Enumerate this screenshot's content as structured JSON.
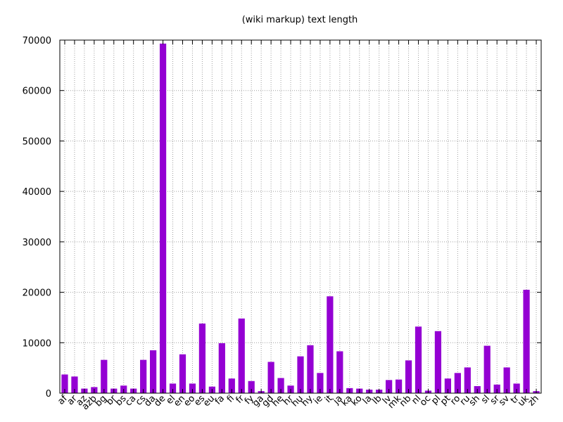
{
  "chart_data": {
    "type": "bar",
    "title": "(wiki markup) text length",
    "xlabel": "",
    "ylabel": "",
    "ylim": [
      0,
      70000
    ],
    "yticks": [
      "0",
      "10000",
      "20000",
      "30000",
      "40000",
      "50000",
      "60000",
      "70000"
    ],
    "grid": true,
    "bar_color": "#9400d3",
    "categories": [
      "af",
      "ar",
      "az",
      "azb",
      "bg",
      "br",
      "bs",
      "ca",
      "cs",
      "da",
      "de",
      "el",
      "en",
      "eo",
      "es",
      "eu",
      "fa",
      "fi",
      "fr",
      "fy",
      "ga",
      "gd",
      "he",
      "hr",
      "hu",
      "hy",
      "ie",
      "it",
      "ja",
      "ka",
      "ko",
      "la",
      "lb",
      "lv",
      "mk",
      "nb",
      "nl",
      "oc",
      "pl",
      "pt",
      "ro",
      "ru",
      "sh",
      "sl",
      "sr",
      "sv",
      "tr",
      "uk",
      "zh"
    ],
    "values": [
      3700,
      3300,
      900,
      1200,
      6600,
      900,
      1500,
      900,
      6600,
      8500,
      69300,
      1900,
      7700,
      1900,
      13800,
      1300,
      9900,
      2900,
      14800,
      2400,
      400,
      6200,
      3000,
      1500,
      7300,
      9500,
      4000,
      19200,
      8300,
      1000,
      900,
      700,
      700,
      2600,
      2700,
      6500,
      13200,
      500,
      12300,
      2900,
      4000,
      5100,
      1400,
      9400,
      1700,
      5100,
      1900,
      20500,
      400
    ]
  }
}
